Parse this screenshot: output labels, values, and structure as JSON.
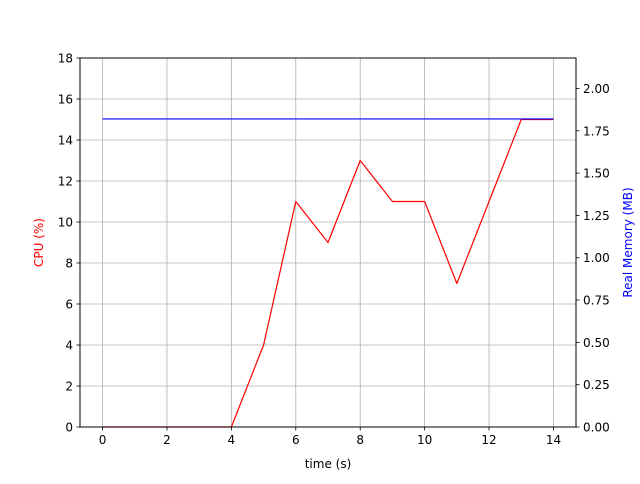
{
  "chart_data": {
    "type": "line",
    "xlabel": "time (s)",
    "ylabel_left": "CPU (%)",
    "ylabel_right": "Real Memory (MB)",
    "xlim": [
      -0.7,
      14.7
    ],
    "ylim_left": [
      0,
      18
    ],
    "ylim_right": [
      0,
      2.18
    ],
    "x_ticks": [
      0,
      2,
      4,
      6,
      8,
      10,
      12,
      14
    ],
    "y_left_ticks": [
      0,
      2,
      4,
      6,
      8,
      10,
      12,
      14,
      16,
      18
    ],
    "y_right_ticks": [
      "0.00",
      "0.25",
      "0.50",
      "0.75",
      "1.00",
      "1.25",
      "1.50",
      "1.75",
      "2.00"
    ],
    "grid": true,
    "series": [
      {
        "axis": "left",
        "color": "#ff0000",
        "x": [
          0,
          1,
          2,
          3,
          4,
          5,
          6,
          7,
          8,
          9,
          10,
          11,
          12,
          13,
          14
        ],
        "values": [
          0,
          0,
          0,
          0,
          0,
          4,
          11,
          9,
          13,
          11,
          11,
          7,
          11,
          15,
          15
        ]
      },
      {
        "axis": "right",
        "color": "#0000ff",
        "x": [
          0,
          1,
          2,
          3,
          4,
          5,
          6,
          7,
          8,
          9,
          10,
          11,
          12,
          13,
          14
        ],
        "values": [
          1.82,
          1.82,
          1.82,
          1.82,
          1.82,
          1.82,
          1.82,
          1.82,
          1.82,
          1.82,
          1.82,
          1.82,
          1.82,
          1.82,
          1.82
        ]
      }
    ]
  }
}
